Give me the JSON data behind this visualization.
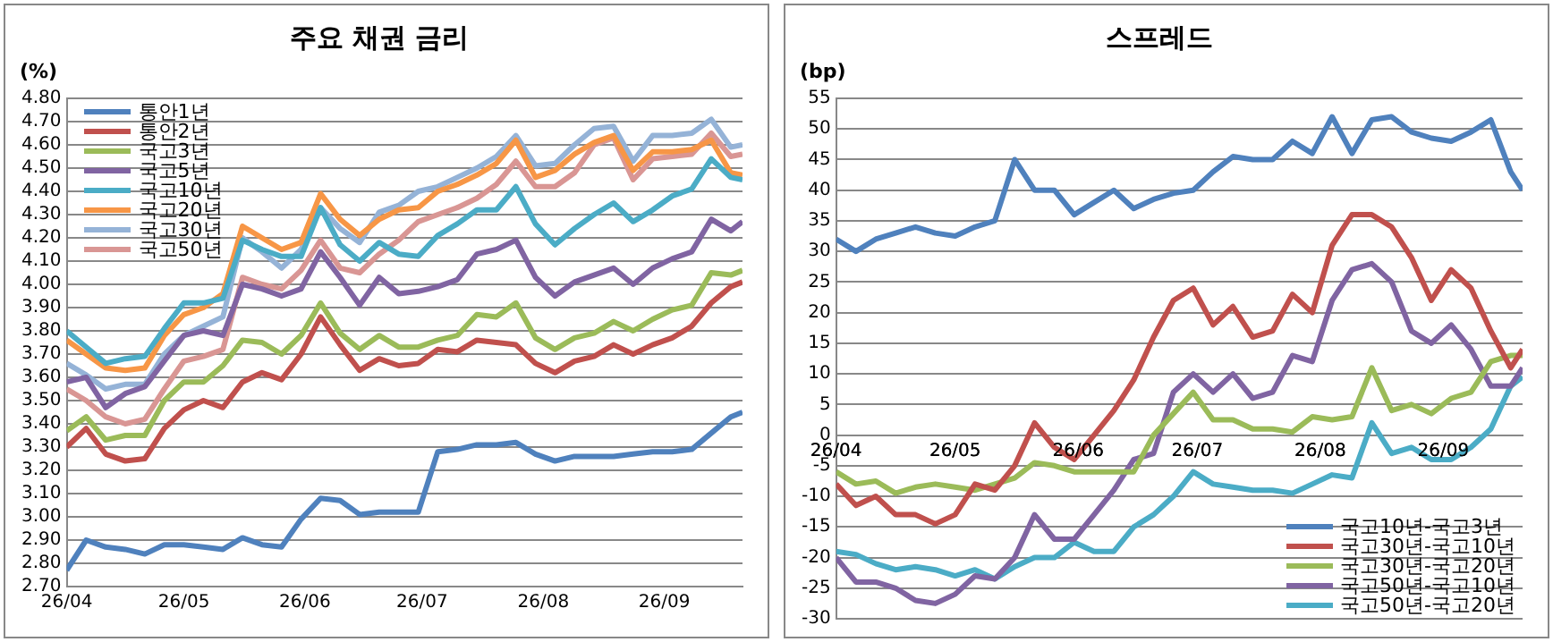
{
  "chart_data": [
    {
      "type": "line",
      "title": "주요 채권 금리",
      "ylabel": "(%)",
      "legend": "top left",
      "grid": "y",
      "marker": "none",
      "line_style": "solid",
      "x": [
        "--04-01",
        "--04-06",
        "--04-11",
        "--04-16",
        "--04-21",
        "--04-26",
        "--05-01",
        "--05-06",
        "--05-11",
        "--05-16",
        "--05-21",
        "--05-26",
        "--05-31",
        "--06-05",
        "--06-10",
        "--06-15",
        "--06-20",
        "--06-25",
        "--06-30",
        "--07-05",
        "--07-10",
        "--07-15",
        "--07-20",
        "--07-25",
        "--07-30",
        "--08-04",
        "--08-09",
        "--08-14",
        "--08-19",
        "--08-24",
        "--08-29",
        "--09-03",
        "--09-08",
        "--09-13",
        "--09-18",
        "--09-21"
      ],
      "xlim": [
        "--04-01",
        "--09-21"
      ],
      "xticks": [
        {
          "value": "--04-01",
          "label": "26/04"
        },
        {
          "value": "--05-01",
          "label": "26/05"
        },
        {
          "value": "--06-01",
          "label": "26/06"
        },
        {
          "value": "--07-01",
          "label": "26/07"
        },
        {
          "value": "--08-01",
          "label": "26/08"
        },
        {
          "value": "--09-01",
          "label": "26/09"
        }
      ],
      "ylim": [
        2.7,
        4.8
      ],
      "yticks": [
        {
          "value": 2.7,
          "label": "2.70"
        },
        {
          "value": 2.8,
          "label": "2.80"
        },
        {
          "value": 2.9,
          "label": "2.90"
        },
        {
          "value": 3.0,
          "label": "3.00"
        },
        {
          "value": 3.1,
          "label": "3.10"
        },
        {
          "value": 3.2,
          "label": "3.20"
        },
        {
          "value": 3.3,
          "label": "3.30"
        },
        {
          "value": 3.4,
          "label": "3.40"
        },
        {
          "value": 3.5,
          "label": "3.50"
        },
        {
          "value": 3.6,
          "label": "3.60"
        },
        {
          "value": 3.7,
          "label": "3.70"
        },
        {
          "value": 3.8,
          "label": "3.80"
        },
        {
          "value": 3.9,
          "label": "3.90"
        },
        {
          "value": 4.0,
          "label": "4.00"
        },
        {
          "value": 4.1,
          "label": "4.10"
        },
        {
          "value": 4.2,
          "label": "4.20"
        },
        {
          "value": 4.3,
          "label": "4.30"
        },
        {
          "value": 4.4,
          "label": "4.40"
        },
        {
          "value": 4.5,
          "label": "4.50"
        },
        {
          "value": 4.6,
          "label": "4.60"
        },
        {
          "value": 4.7,
          "label": "4.70"
        },
        {
          "value": 4.8,
          "label": "4.80"
        }
      ],
      "series": [
        {
          "name": "통안1년",
          "color": "#4f81bd",
          "values": [
            2.77,
            2.9,
            2.87,
            2.86,
            2.84,
            2.88,
            2.88,
            2.87,
            2.86,
            2.91,
            2.88,
            2.87,
            2.99,
            3.08,
            3.07,
            3.01,
            3.02,
            3.02,
            3.02,
            3.28,
            3.29,
            3.31,
            3.31,
            3.32,
            3.27,
            3.24,
            3.26,
            3.26,
            3.26,
            3.27,
            3.28,
            3.28,
            3.29,
            3.36,
            3.43,
            3.45
          ]
        },
        {
          "name": "통안2년",
          "color": "#c0504d",
          "values": [
            3.3,
            3.38,
            3.27,
            3.24,
            3.25,
            3.38,
            3.46,
            3.5,
            3.47,
            3.58,
            3.62,
            3.59,
            3.7,
            3.86,
            3.74,
            3.63,
            3.68,
            3.65,
            3.66,
            3.72,
            3.71,
            3.76,
            3.75,
            3.74,
            3.66,
            3.62,
            3.67,
            3.69,
            3.74,
            3.7,
            3.74,
            3.77,
            3.82,
            3.92,
            3.99,
            4.01
          ]
        },
        {
          "name": "국고3년",
          "color": "#9bbb59",
          "values": [
            3.37,
            3.43,
            3.33,
            3.35,
            3.35,
            3.5,
            3.58,
            3.58,
            3.65,
            3.76,
            3.75,
            3.7,
            3.78,
            3.92,
            3.79,
            3.72,
            3.78,
            3.73,
            3.73,
            3.76,
            3.78,
            3.87,
            3.86,
            3.92,
            3.77,
            3.72,
            3.77,
            3.79,
            3.84,
            3.8,
            3.85,
            3.89,
            3.91,
            4.05,
            4.04,
            4.06
          ]
        },
        {
          "name": "국고5년",
          "color": "#8064a2",
          "values": [
            3.58,
            3.6,
            3.47,
            3.53,
            3.56,
            3.67,
            3.78,
            3.8,
            3.78,
            4.0,
            3.98,
            3.95,
            3.98,
            4.14,
            4.03,
            3.91,
            4.03,
            3.96,
            3.97,
            3.99,
            4.02,
            4.13,
            4.15,
            4.19,
            4.03,
            3.95,
            4.01,
            4.04,
            4.07,
            4.0,
            4.07,
            4.11,
            4.14,
            4.28,
            4.23,
            4.27
          ]
        },
        {
          "name": "국고10년",
          "color": "#4bacc6",
          "values": [
            3.8,
            3.73,
            3.66,
            3.68,
            3.69,
            3.81,
            3.92,
            3.92,
            3.94,
            4.19,
            4.15,
            4.12,
            4.12,
            4.33,
            4.17,
            4.1,
            4.18,
            4.13,
            4.12,
            4.21,
            4.26,
            4.32,
            4.32,
            4.42,
            4.26,
            4.17,
            4.24,
            4.3,
            4.35,
            4.27,
            4.32,
            4.38,
            4.41,
            4.54,
            4.46,
            4.45
          ]
        },
        {
          "name": "국고20년",
          "color": "#f79646",
          "values": [
            3.76,
            3.7,
            3.64,
            3.63,
            3.64,
            3.78,
            3.87,
            3.9,
            3.96,
            4.25,
            4.2,
            4.15,
            4.18,
            4.39,
            4.28,
            4.21,
            4.28,
            4.32,
            4.33,
            4.4,
            4.43,
            4.47,
            4.52,
            4.62,
            4.46,
            4.49,
            4.56,
            4.61,
            4.64,
            4.49,
            4.57,
            4.57,
            4.58,
            4.62,
            4.48,
            4.47
          ]
        },
        {
          "name": "국고30년",
          "color": "#95b3d7",
          "values": [
            3.66,
            3.61,
            3.55,
            3.57,
            3.57,
            3.7,
            3.78,
            3.82,
            3.86,
            4.2,
            4.14,
            4.07,
            4.15,
            4.33,
            4.24,
            4.18,
            4.31,
            4.34,
            4.4,
            4.42,
            4.46,
            4.5,
            4.55,
            4.64,
            4.51,
            4.52,
            4.6,
            4.67,
            4.68,
            4.53,
            4.64,
            4.64,
            4.65,
            4.71,
            4.59,
            4.6
          ]
        },
        {
          "name": "국고50년",
          "color": "#d99694",
          "values": [
            3.55,
            3.5,
            3.43,
            3.4,
            3.42,
            3.55,
            3.67,
            3.69,
            3.72,
            4.03,
            4.0,
            3.98,
            4.06,
            4.19,
            4.07,
            4.05,
            4.13,
            4.19,
            4.27,
            4.3,
            4.33,
            4.37,
            4.43,
            4.53,
            4.42,
            4.42,
            4.48,
            4.6,
            4.63,
            4.45,
            4.54,
            4.55,
            4.56,
            4.65,
            4.55,
            4.56
          ]
        }
      ]
    },
    {
      "type": "line",
      "title": "스프레드",
      "ylabel": "(bp)",
      "legend": "bottom right",
      "grid": "y",
      "marker": "none",
      "line_style": "solid",
      "x": [
        "--04-01",
        "--04-06",
        "--04-11",
        "--04-16",
        "--04-21",
        "--04-26",
        "--05-01",
        "--05-06",
        "--05-11",
        "--05-16",
        "--05-21",
        "--05-26",
        "--05-31",
        "--06-05",
        "--06-10",
        "--06-15",
        "--06-20",
        "--06-25",
        "--06-30",
        "--07-05",
        "--07-10",
        "--07-15",
        "--07-20",
        "--07-25",
        "--07-30",
        "--08-04",
        "--08-09",
        "--08-14",
        "--08-19",
        "--08-24",
        "--08-29",
        "--09-03",
        "--09-08",
        "--09-13",
        "--09-18",
        "--09-21"
      ],
      "xlim": [
        "--04-01",
        "--09-21"
      ],
      "xticks": [
        {
          "value": "--04-01",
          "label": "26/04"
        },
        {
          "value": "--05-01",
          "label": "26/05"
        },
        {
          "value": "--06-01",
          "label": "26/06"
        },
        {
          "value": "--07-01",
          "label": "26/07"
        },
        {
          "value": "--08-01",
          "label": "26/08"
        },
        {
          "value": "--09-01",
          "label": "26/09"
        }
      ],
      "ylim": [
        -30,
        55
      ],
      "yticks": [
        -30,
        -25,
        -20,
        -15,
        -10,
        -5,
        0,
        5,
        10,
        15,
        20,
        25,
        30,
        35,
        40,
        45,
        50,
        55
      ],
      "series": [
        {
          "name": "국고10년-국고3년",
          "color": "#4f81bd",
          "values": [
            32,
            30,
            32,
            33,
            34,
            33,
            32.5,
            34,
            35,
            45,
            40,
            40,
            36,
            38,
            40,
            37,
            38.5,
            39.5,
            40,
            43,
            45.5,
            45,
            45,
            48,
            46,
            52,
            46,
            51.5,
            52,
            49.5,
            48.5,
            48,
            49.5,
            51.5,
            43,
            40
          ]
        },
        {
          "name": "국고30년-국고10년",
          "color": "#c0504d",
          "values": [
            -8,
            -11.5,
            -10,
            -13,
            -13,
            -14.5,
            -13,
            -8,
            -9,
            -5,
            2,
            -2,
            -4,
            0,
            4,
            9,
            16,
            22,
            24,
            18,
            21,
            16,
            17,
            23,
            20,
            31,
            36,
            36,
            34,
            29,
            22,
            27,
            24,
            17,
            11,
            14
          ]
        },
        {
          "name": "국고30년-국고20년",
          "color": "#9bbb59",
          "values": [
            -6,
            -8,
            -7.5,
            -9.5,
            -8.5,
            -8,
            -8.5,
            -9,
            -8,
            -7,
            -4.5,
            -5,
            -6,
            -6,
            -6,
            -6,
            0,
            3.5,
            7,
            2.5,
            2.5,
            1,
            1,
            0.5,
            3,
            2.5,
            3,
            11,
            4,
            5,
            3.5,
            6,
            7,
            12,
            13,
            13
          ]
        },
        {
          "name": "국고50년-국고10년",
          "color": "#8064a2",
          "values": [
            -20,
            -24,
            -24,
            -25,
            -27,
            -27.5,
            -26,
            -23,
            -23.5,
            -20,
            -13,
            -17,
            -17,
            -13,
            -9,
            -4,
            -3,
            7,
            10,
            7,
            10,
            6,
            7,
            13,
            12,
            22,
            27,
            28,
            25,
            17,
            15,
            18,
            14,
            8,
            8,
            11
          ]
        },
        {
          "name": "국고50년-국고20년",
          "color": "#4bacc6",
          "values": [
            -19,
            -19.5,
            -21,
            -22,
            -21.5,
            -22,
            -23,
            -22,
            -23.5,
            -21.5,
            -20,
            -20,
            -17.5,
            -19,
            -19,
            -15,
            -13,
            -10,
            -6,
            -8,
            -8.5,
            -9,
            -9,
            -9.5,
            -8,
            -6.5,
            -7,
            2,
            -3,
            -2,
            -4,
            -4,
            -2,
            1,
            8,
            9.5
          ]
        }
      ]
    }
  ]
}
